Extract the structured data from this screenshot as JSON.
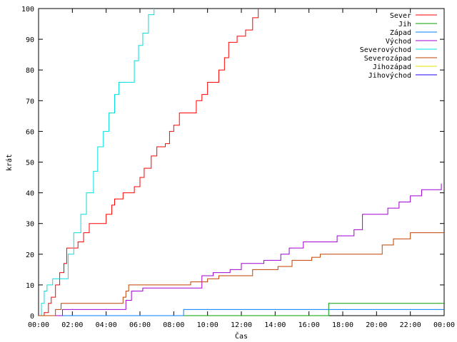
{
  "chart_data": {
    "type": "line",
    "xlabel": "Čas",
    "ylabel": "krát",
    "xlim": [
      "00:00",
      "24:00"
    ],
    "ylim": [
      0,
      100
    ],
    "x_ticks": [
      "00:00",
      "02:00",
      "04:00",
      "06:00",
      "08:00",
      "10:00",
      "12:00",
      "14:00",
      "16:00",
      "18:00",
      "20:00",
      "22:00",
      "00:00"
    ],
    "y_ticks": [
      0,
      10,
      20,
      30,
      40,
      50,
      60,
      70,
      80,
      90,
      100
    ],
    "grid": false,
    "legend_position": "top-right",
    "series": [
      {
        "name": "Sever",
        "color": "#ff0000",
        "points": [
          [
            "00:00",
            0
          ],
          [
            "00:20",
            1
          ],
          [
            "00:35",
            4
          ],
          [
            "00:45",
            6
          ],
          [
            "01:00",
            10
          ],
          [
            "01:15",
            14
          ],
          [
            "01:30",
            17
          ],
          [
            "01:40",
            22
          ],
          [
            "02:20",
            24
          ],
          [
            "02:40",
            27
          ],
          [
            "03:00",
            30
          ],
          [
            "03:45",
            30
          ],
          [
            "04:00",
            33
          ],
          [
            "04:20",
            36
          ],
          [
            "04:30",
            38
          ],
          [
            "05:00",
            40
          ],
          [
            "05:40",
            42
          ],
          [
            "06:00",
            45
          ],
          [
            "06:15",
            48
          ],
          [
            "06:40",
            52
          ],
          [
            "07:00",
            55
          ],
          [
            "07:30",
            56
          ],
          [
            "07:45",
            60
          ],
          [
            "08:00",
            62
          ],
          [
            "08:20",
            66
          ],
          [
            "09:00",
            66
          ],
          [
            "09:20",
            70
          ],
          [
            "09:40",
            72
          ],
          [
            "10:00",
            76
          ],
          [
            "10:40",
            80
          ],
          [
            "11:00",
            84
          ],
          [
            "11:15",
            89
          ],
          [
            "11:45",
            91
          ],
          [
            "12:15",
            93
          ],
          [
            "12:40",
            97
          ],
          [
            "13:00",
            100
          ]
        ]
      },
      {
        "name": "Jih",
        "color": "#00a000",
        "points": [
          [
            "00:00",
            0
          ],
          [
            "17:00",
            0
          ],
          [
            "17:10",
            4
          ],
          [
            "24:00",
            4
          ]
        ]
      },
      {
        "name": "Západ",
        "color": "#0080ff",
        "points": [
          [
            "00:00",
            0
          ],
          [
            "08:30",
            0
          ],
          [
            "08:35",
            2
          ],
          [
            "24:00",
            2
          ]
        ]
      },
      {
        "name": "Východ",
        "color": "#a000d0",
        "points": [
          [
            "00:00",
            0
          ],
          [
            "01:20",
            0
          ],
          [
            "01:25",
            2
          ],
          [
            "05:00",
            2
          ],
          [
            "05:10",
            5
          ],
          [
            "05:30",
            8
          ],
          [
            "06:10",
            9
          ],
          [
            "08:40",
            9
          ],
          [
            "09:40",
            13
          ],
          [
            "10:20",
            14
          ],
          [
            "11:20",
            15
          ],
          [
            "12:00",
            17
          ],
          [
            "13:20",
            18
          ],
          [
            "14:20",
            20
          ],
          [
            "14:50",
            22
          ],
          [
            "15:40",
            24
          ],
          [
            "17:40",
            26
          ],
          [
            "18:40",
            28
          ],
          [
            "19:10",
            33
          ],
          [
            "20:00",
            33
          ],
          [
            "20:40",
            35
          ],
          [
            "21:20",
            37
          ],
          [
            "22:00",
            39
          ],
          [
            "22:40",
            41
          ],
          [
            "23:50",
            43
          ]
        ]
      },
      {
        "name": "Severovýchod",
        "color": "#00e0e0",
        "points": [
          [
            "00:00",
            0
          ],
          [
            "00:10",
            4
          ],
          [
            "00:20",
            8
          ],
          [
            "00:30",
            10
          ],
          [
            "00:50",
            12
          ],
          [
            "01:30",
            12
          ],
          [
            "01:45",
            20
          ],
          [
            "02:05",
            27
          ],
          [
            "02:30",
            33
          ],
          [
            "02:50",
            40
          ],
          [
            "03:15",
            47
          ],
          [
            "03:30",
            55
          ],
          [
            "03:50",
            60
          ],
          [
            "04:10",
            66
          ],
          [
            "04:30",
            72
          ],
          [
            "04:45",
            76
          ],
          [
            "05:20",
            76
          ],
          [
            "05:40",
            83
          ],
          [
            "05:55",
            88
          ],
          [
            "06:10",
            92
          ],
          [
            "06:30",
            98
          ],
          [
            "06:50",
            100
          ]
        ]
      },
      {
        "name": "Severozápad",
        "color": "#c04000",
        "points": [
          [
            "00:00",
            0
          ],
          [
            "00:55",
            0
          ],
          [
            "01:00",
            2
          ],
          [
            "01:20",
            4
          ],
          [
            "04:50",
            4
          ],
          [
            "05:00",
            6
          ],
          [
            "05:10",
            8
          ],
          [
            "05:20",
            10
          ],
          [
            "08:50",
            10
          ],
          [
            "09:00",
            11
          ],
          [
            "10:00",
            12
          ],
          [
            "10:40",
            13
          ],
          [
            "12:40",
            15
          ],
          [
            "14:10",
            16
          ],
          [
            "15:00",
            18
          ],
          [
            "16:10",
            19
          ],
          [
            "16:40",
            20
          ],
          [
            "20:10",
            20
          ],
          [
            "20:20",
            23
          ],
          [
            "21:00",
            25
          ],
          [
            "22:00",
            27
          ],
          [
            "24:00",
            27
          ]
        ]
      },
      {
        "name": "Jihozápad",
        "color": "#e0e000",
        "points": []
      },
      {
        "name": "Jihovýchod",
        "color": "#2000ff",
        "points": []
      }
    ]
  }
}
